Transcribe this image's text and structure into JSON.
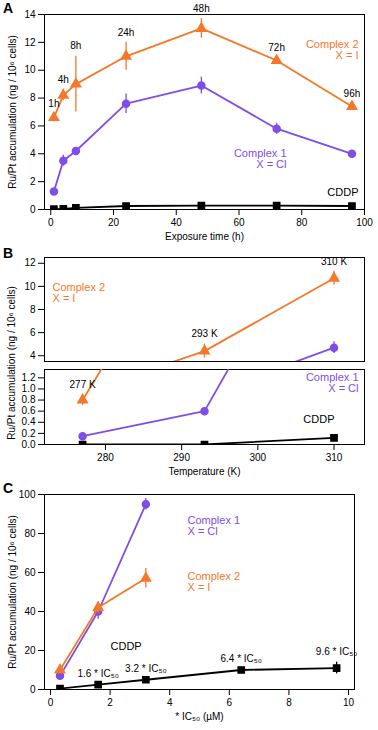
{
  "chart_data": [
    {
      "type": "line",
      "title": "A",
      "x_label": "Exposure time (h)",
      "y_label": "Ru/Pt accumulation (ng / 10⁶ cells)",
      "xlim": [
        -2,
        100
      ],
      "xticks": [
        0,
        20,
        40,
        60,
        80,
        100
      ],
      "ylim": [
        0,
        14
      ],
      "yticks": [
        0,
        2,
        4,
        6,
        8,
        10,
        12,
        14
      ],
      "series": [
        {
          "name": "Complex 2\nX = I",
          "color": "#f5782a",
          "marker": "triangle",
          "x": [
            1,
            4,
            8,
            24,
            48,
            72,
            96
          ],
          "values": [
            6.6,
            8.2,
            9.0,
            11.0,
            13.0,
            10.7,
            7.4
          ],
          "errors": [
            0.3,
            0.4,
            2.0,
            1.0,
            0.7,
            0.2,
            0.2
          ],
          "point_labels": [
            "1h",
            "4h",
            "8h",
            "24h",
            "48h",
            "72h",
            "96h"
          ]
        },
        {
          "name": "Complex 1\nX = Cl",
          "color": "#7e4ee6",
          "marker": "circle",
          "x": [
            1,
            4,
            8,
            24,
            48,
            72,
            96
          ],
          "values": [
            1.3,
            3.5,
            4.2,
            7.6,
            8.9,
            5.8,
            4.0
          ],
          "errors": [
            0.1,
            0.4,
            0.2,
            0.7,
            0.6,
            0.4,
            0.2
          ]
        },
        {
          "name": "CDDP",
          "color": "#000000",
          "marker": "square",
          "x": [
            1,
            4,
            8,
            24,
            48,
            72,
            96
          ],
          "values": [
            0.02,
            0.05,
            0.12,
            0.25,
            0.28,
            0.28,
            0.25
          ],
          "errors": [
            0.02,
            0.02,
            0.03,
            0.03,
            0.03,
            0.03,
            0.03
          ]
        }
      ]
    },
    {
      "type": "line",
      "title": "B",
      "x_label": "Temperature (K)",
      "y_label": "Ru/Pt accumulation (ng / 10⁶ cells)",
      "xlim": [
        272,
        314
      ],
      "xticks": [
        280,
        290,
        300,
        310
      ],
      "ylim": [
        0,
        12.5
      ],
      "axis_break": [
        1.35,
        3.5
      ],
      "yticks": [
        {
          "value": 0,
          "label": "0.0"
        },
        0.2,
        0.4,
        0.6,
        0.8,
        {
          "value": 1,
          "label": "1.0"
        },
        1.2,
        4,
        6,
        8,
        10,
        12
      ],
      "series": [
        {
          "name": "Complex 2\nX = I",
          "color": "#f5782a",
          "marker": "triangle",
          "x": [
            277,
            293,
            310
          ],
          "values": [
            0.8,
            4.4,
            10.7
          ],
          "errors": [
            0.1,
            0.6,
            0.6
          ],
          "point_labels": [
            "277 K",
            "293 K",
            "310 K"
          ]
        },
        {
          "name": "Complex 1\nX = Cl",
          "color": "#7e4ee6",
          "marker": "circle",
          "x": [
            277,
            293,
            310
          ],
          "values": [
            0.15,
            0.6,
            4.7
          ],
          "errors": [
            0.02,
            0.04,
            0.5
          ]
        },
        {
          "name": "CDDP",
          "color": "#000000",
          "marker": "square",
          "x": [
            277,
            293,
            310
          ],
          "values": [
            0.0,
            0.0,
            0.12
          ],
          "errors": [
            0.01,
            0.02,
            0.02
          ]
        }
      ]
    },
    {
      "type": "line",
      "title": "C",
      "x_label": "* IC₅₀ (µM)",
      "y_label": "Ru/Pt accumulation (ng / 10⁶ cells)",
      "xlim": [
        -0.2,
        10.2
      ],
      "xticks": [
        0,
        2,
        4,
        6,
        8,
        10
      ],
      "ylim": [
        0,
        100
      ],
      "yticks": [
        0,
        20,
        40,
        60,
        80,
        100
      ],
      "series": [
        {
          "name": "Complex 1\nX = Cl",
          "color": "#7e4ee6",
          "marker": "circle",
          "x": [
            0.32,
            1.6,
            3.2
          ],
          "values": [
            7,
            40,
            95
          ],
          "errors": [
            1,
            4,
            3
          ]
        },
        {
          "name": "Complex 2\nX = I",
          "color": "#f5782a",
          "marker": "triangle",
          "x": [
            0.32,
            1.6,
            3.2
          ],
          "values": [
            10,
            42,
            57
          ],
          "errors": [
            1,
            3,
            5
          ]
        },
        {
          "name": "CDDP",
          "color": "#000000",
          "marker": "square",
          "x": [
            0.32,
            1.6,
            3.2,
            6.4,
            9.6
          ],
          "values": [
            0.5,
            2.5,
            5,
            10,
            11
          ],
          "errors": [
            0.3,
            0.3,
            0.5,
            0.8,
            3
          ],
          "point_labels": [
            null,
            "1.6 * IC₅₀",
            "3.2 * IC₅₀",
            "6.4 * IC₅₀",
            "9.6 * IC₅₀"
          ]
        }
      ]
    }
  ]
}
